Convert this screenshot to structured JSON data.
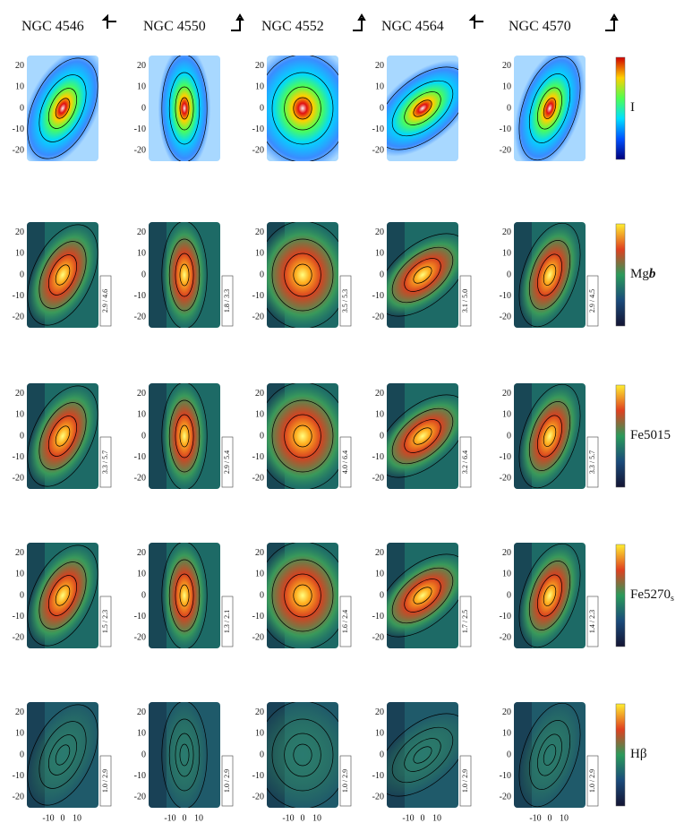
{
  "columns": [
    {
      "name": "NGC 4546"
    },
    {
      "name": "NGC 4550"
    },
    {
      "name": "NGC 4552"
    },
    {
      "name": "NGC 4564"
    },
    {
      "name": "NGC 4570"
    }
  ],
  "rows": [
    {
      "label": "I"
    },
    {
      "label": "Mg",
      "label_suffix": "b",
      "ranges": [
        "2.9 / 4.6",
        "1.8 / 3.3",
        "3.5 / 5.3",
        "3.1 / 5.0",
        "2.9 / 4.5"
      ]
    },
    {
      "label": "Fe5015",
      "ranges": [
        "3.3 / 5.7",
        "2.9 / 5.4",
        "4.0 / 6.4",
        "3.2 / 6.4",
        "3.3 / 5.7"
      ]
    },
    {
      "label": "Fe5270",
      "label_suffix": "s",
      "ranges": [
        "1.5 / 2.3",
        "1.3 / 2.1",
        "1.6 / 2.4",
        "1.7 / 2.5",
        "1.4 / 2.3"
      ]
    },
    {
      "label": "Hβ",
      "ranges": [
        "1.0 / 2.9",
        "1.0 / 2.9",
        "1.0 / 2.9",
        "1.0 / 2.9",
        "1.0 / 2.9"
      ]
    }
  ],
  "yticks": [
    20,
    10,
    0,
    -10,
    -20
  ],
  "xticks": [
    -10,
    0,
    10
  ]
}
